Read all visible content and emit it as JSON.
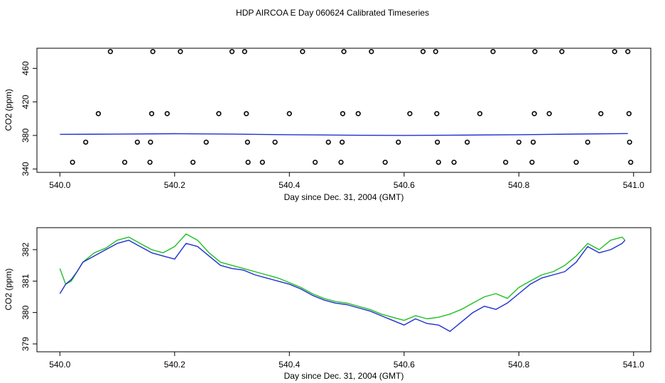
{
  "figure": {
    "title": "HDP AIRCOA E  Day 060624  Calibrated Timeseries"
  },
  "colors": {
    "green": "#1fbf1f",
    "blue": "#1f2fcf",
    "points": "#000000"
  },
  "chart_data": [
    {
      "type": "scatter",
      "xlabel": "Day since Dec. 31, 2004 (GMT)",
      "ylabel": "CO2 (ppm)",
      "xlim": [
        539.96,
        541.03
      ],
      "ylim": [
        336,
        484
      ],
      "xticks": [
        "540.0",
        "540.2",
        "540.4",
        "540.6",
        "540.8",
        "541.0"
      ],
      "yticks": [
        "340",
        "380",
        "420",
        "460"
      ],
      "xtick_values": [
        540.0,
        540.2,
        540.4,
        540.6,
        540.8,
        541.0
      ],
      "ytick_values": [
        340,
        380,
        420,
        460
      ],
      "grid": false,
      "series": [
        {
          "kind": "points",
          "points": [
            [
              540.022,
              348
            ],
            [
              540.045,
              372
            ],
            [
              540.067,
              406
            ],
            [
              540.088,
              480
            ],
            [
              540.113,
              348
            ],
            [
              540.135,
              372
            ],
            [
              540.157,
              348
            ],
            [
              540.158,
              372
            ],
            [
              540.16,
              406
            ],
            [
              540.162,
              480
            ],
            [
              540.187,
              406
            ],
            [
              540.21,
              480
            ],
            [
              540.232,
              348
            ],
            [
              540.255,
              372
            ],
            [
              540.277,
              406
            ],
            [
              540.3,
              480
            ],
            [
              540.322,
              480
            ],
            [
              540.325,
              406
            ],
            [
              540.327,
              372
            ],
            [
              540.328,
              348
            ],
            [
              540.353,
              348
            ],
            [
              540.375,
              372
            ],
            [
              540.4,
              406
            ],
            [
              540.423,
              480
            ],
            [
              540.445,
              348
            ],
            [
              540.468,
              372
            ],
            [
              540.49,
              348
            ],
            [
              540.492,
              372
            ],
            [
              540.493,
              406
            ],
            [
              540.495,
              480
            ],
            [
              540.52,
              406
            ],
            [
              540.543,
              480
            ],
            [
              540.567,
              348
            ],
            [
              540.59,
              372
            ],
            [
              540.61,
              406
            ],
            [
              540.633,
              480
            ],
            [
              540.655,
              480
            ],
            [
              540.657,
              406
            ],
            [
              540.658,
              372
            ],
            [
              540.66,
              348
            ],
            [
              540.687,
              348
            ],
            [
              540.71,
              372
            ],
            [
              540.732,
              406
            ],
            [
              540.755,
              480
            ],
            [
              540.777,
              348
            ],
            [
              540.8,
              372
            ],
            [
              540.823,
              348
            ],
            [
              540.825,
              372
            ],
            [
              540.827,
              406
            ],
            [
              540.828,
              480
            ],
            [
              540.853,
              406
            ],
            [
              540.875,
              480
            ],
            [
              540.9,
              348
            ],
            [
              540.92,
              372
            ],
            [
              540.943,
              406
            ],
            [
              540.967,
              480
            ],
            [
              540.99,
              480
            ],
            [
              540.992,
              406
            ],
            [
              540.993,
              372
            ],
            [
              540.995,
              348
            ]
          ]
        },
        {
          "kind": "line",
          "x": [
            540.0,
            540.1,
            540.2,
            540.3,
            540.4,
            540.5,
            540.6,
            540.7,
            540.8,
            540.9,
            540.99
          ],
          "values": [
            381.3,
            381.6,
            382.1,
            381.6,
            380.9,
            380.3,
            380.1,
            380.4,
            380.9,
            381.7,
            382.3
          ]
        }
      ]
    },
    {
      "type": "line",
      "xlabel": "Day since Dec. 31, 2004 (GMT)",
      "ylabel": "CO2 (ppm)",
      "xlim": [
        539.96,
        541.03
      ],
      "ylim": [
        378.75,
        382.7
      ],
      "xticks": [
        "540.0",
        "540.2",
        "540.4",
        "540.6",
        "540.8",
        "541.0"
      ],
      "yticks": [
        "379",
        "380",
        "381",
        "382"
      ],
      "xtick_values": [
        540.0,
        540.2,
        540.4,
        540.6,
        540.8,
        541.0
      ],
      "ytick_values": [
        379,
        380,
        381,
        382
      ],
      "grid": false,
      "series": [
        {
          "color": "green",
          "x": [
            540.0,
            540.01,
            540.02,
            540.03,
            540.04,
            540.06,
            540.08,
            540.1,
            540.12,
            540.14,
            540.16,
            540.18,
            540.2,
            540.22,
            540.24,
            540.26,
            540.28,
            540.3,
            540.32,
            540.34,
            540.36,
            540.38,
            540.4,
            540.42,
            540.44,
            540.46,
            540.48,
            540.5,
            540.52,
            540.54,
            540.56,
            540.58,
            540.6,
            540.62,
            540.64,
            540.66,
            540.68,
            540.7,
            540.72,
            540.74,
            540.76,
            540.78,
            540.8,
            540.82,
            540.84,
            540.86,
            540.88,
            540.9,
            540.92,
            540.94,
            540.96,
            540.98,
            540.985
          ],
          "values": [
            381.4,
            380.9,
            381.0,
            381.3,
            381.6,
            381.9,
            382.05,
            382.3,
            382.4,
            382.2,
            382.0,
            381.9,
            382.1,
            382.5,
            382.3,
            381.9,
            381.6,
            381.5,
            381.4,
            381.3,
            381.2,
            381.1,
            380.95,
            380.8,
            380.6,
            380.45,
            380.35,
            380.3,
            380.2,
            380.1,
            379.95,
            379.85,
            379.75,
            379.9,
            379.8,
            379.85,
            379.95,
            380.1,
            380.3,
            380.5,
            380.6,
            380.45,
            380.8,
            381.0,
            381.2,
            381.3,
            381.5,
            381.8,
            382.2,
            382.0,
            382.3,
            382.4,
            382.3
          ]
        },
        {
          "color": "blue",
          "x": [
            540.0,
            540.01,
            540.02,
            540.03,
            540.04,
            540.06,
            540.08,
            540.1,
            540.12,
            540.14,
            540.16,
            540.18,
            540.2,
            540.22,
            540.24,
            540.26,
            540.28,
            540.3,
            540.32,
            540.34,
            540.36,
            540.38,
            540.4,
            540.42,
            540.44,
            540.46,
            540.48,
            540.5,
            540.52,
            540.54,
            540.56,
            540.58,
            540.6,
            540.62,
            540.64,
            540.66,
            540.68,
            540.7,
            540.72,
            540.74,
            540.76,
            540.78,
            540.8,
            540.82,
            540.84,
            540.86,
            540.88,
            540.9,
            540.92,
            540.94,
            540.96,
            540.98,
            540.985
          ],
          "values": [
            380.6,
            380.9,
            381.05,
            381.3,
            381.6,
            381.8,
            382.0,
            382.2,
            382.3,
            382.1,
            381.9,
            381.8,
            381.7,
            382.2,
            382.1,
            381.8,
            381.5,
            381.4,
            381.35,
            381.2,
            381.1,
            381.0,
            380.9,
            380.75,
            380.55,
            380.4,
            380.3,
            380.25,
            380.15,
            380.05,
            379.9,
            379.75,
            379.6,
            379.8,
            379.65,
            379.6,
            379.4,
            379.7,
            380.0,
            380.2,
            380.1,
            380.3,
            380.6,
            380.9,
            381.1,
            381.2,
            381.3,
            381.6,
            382.1,
            381.9,
            382.0,
            382.2,
            382.3
          ]
        }
      ]
    }
  ]
}
